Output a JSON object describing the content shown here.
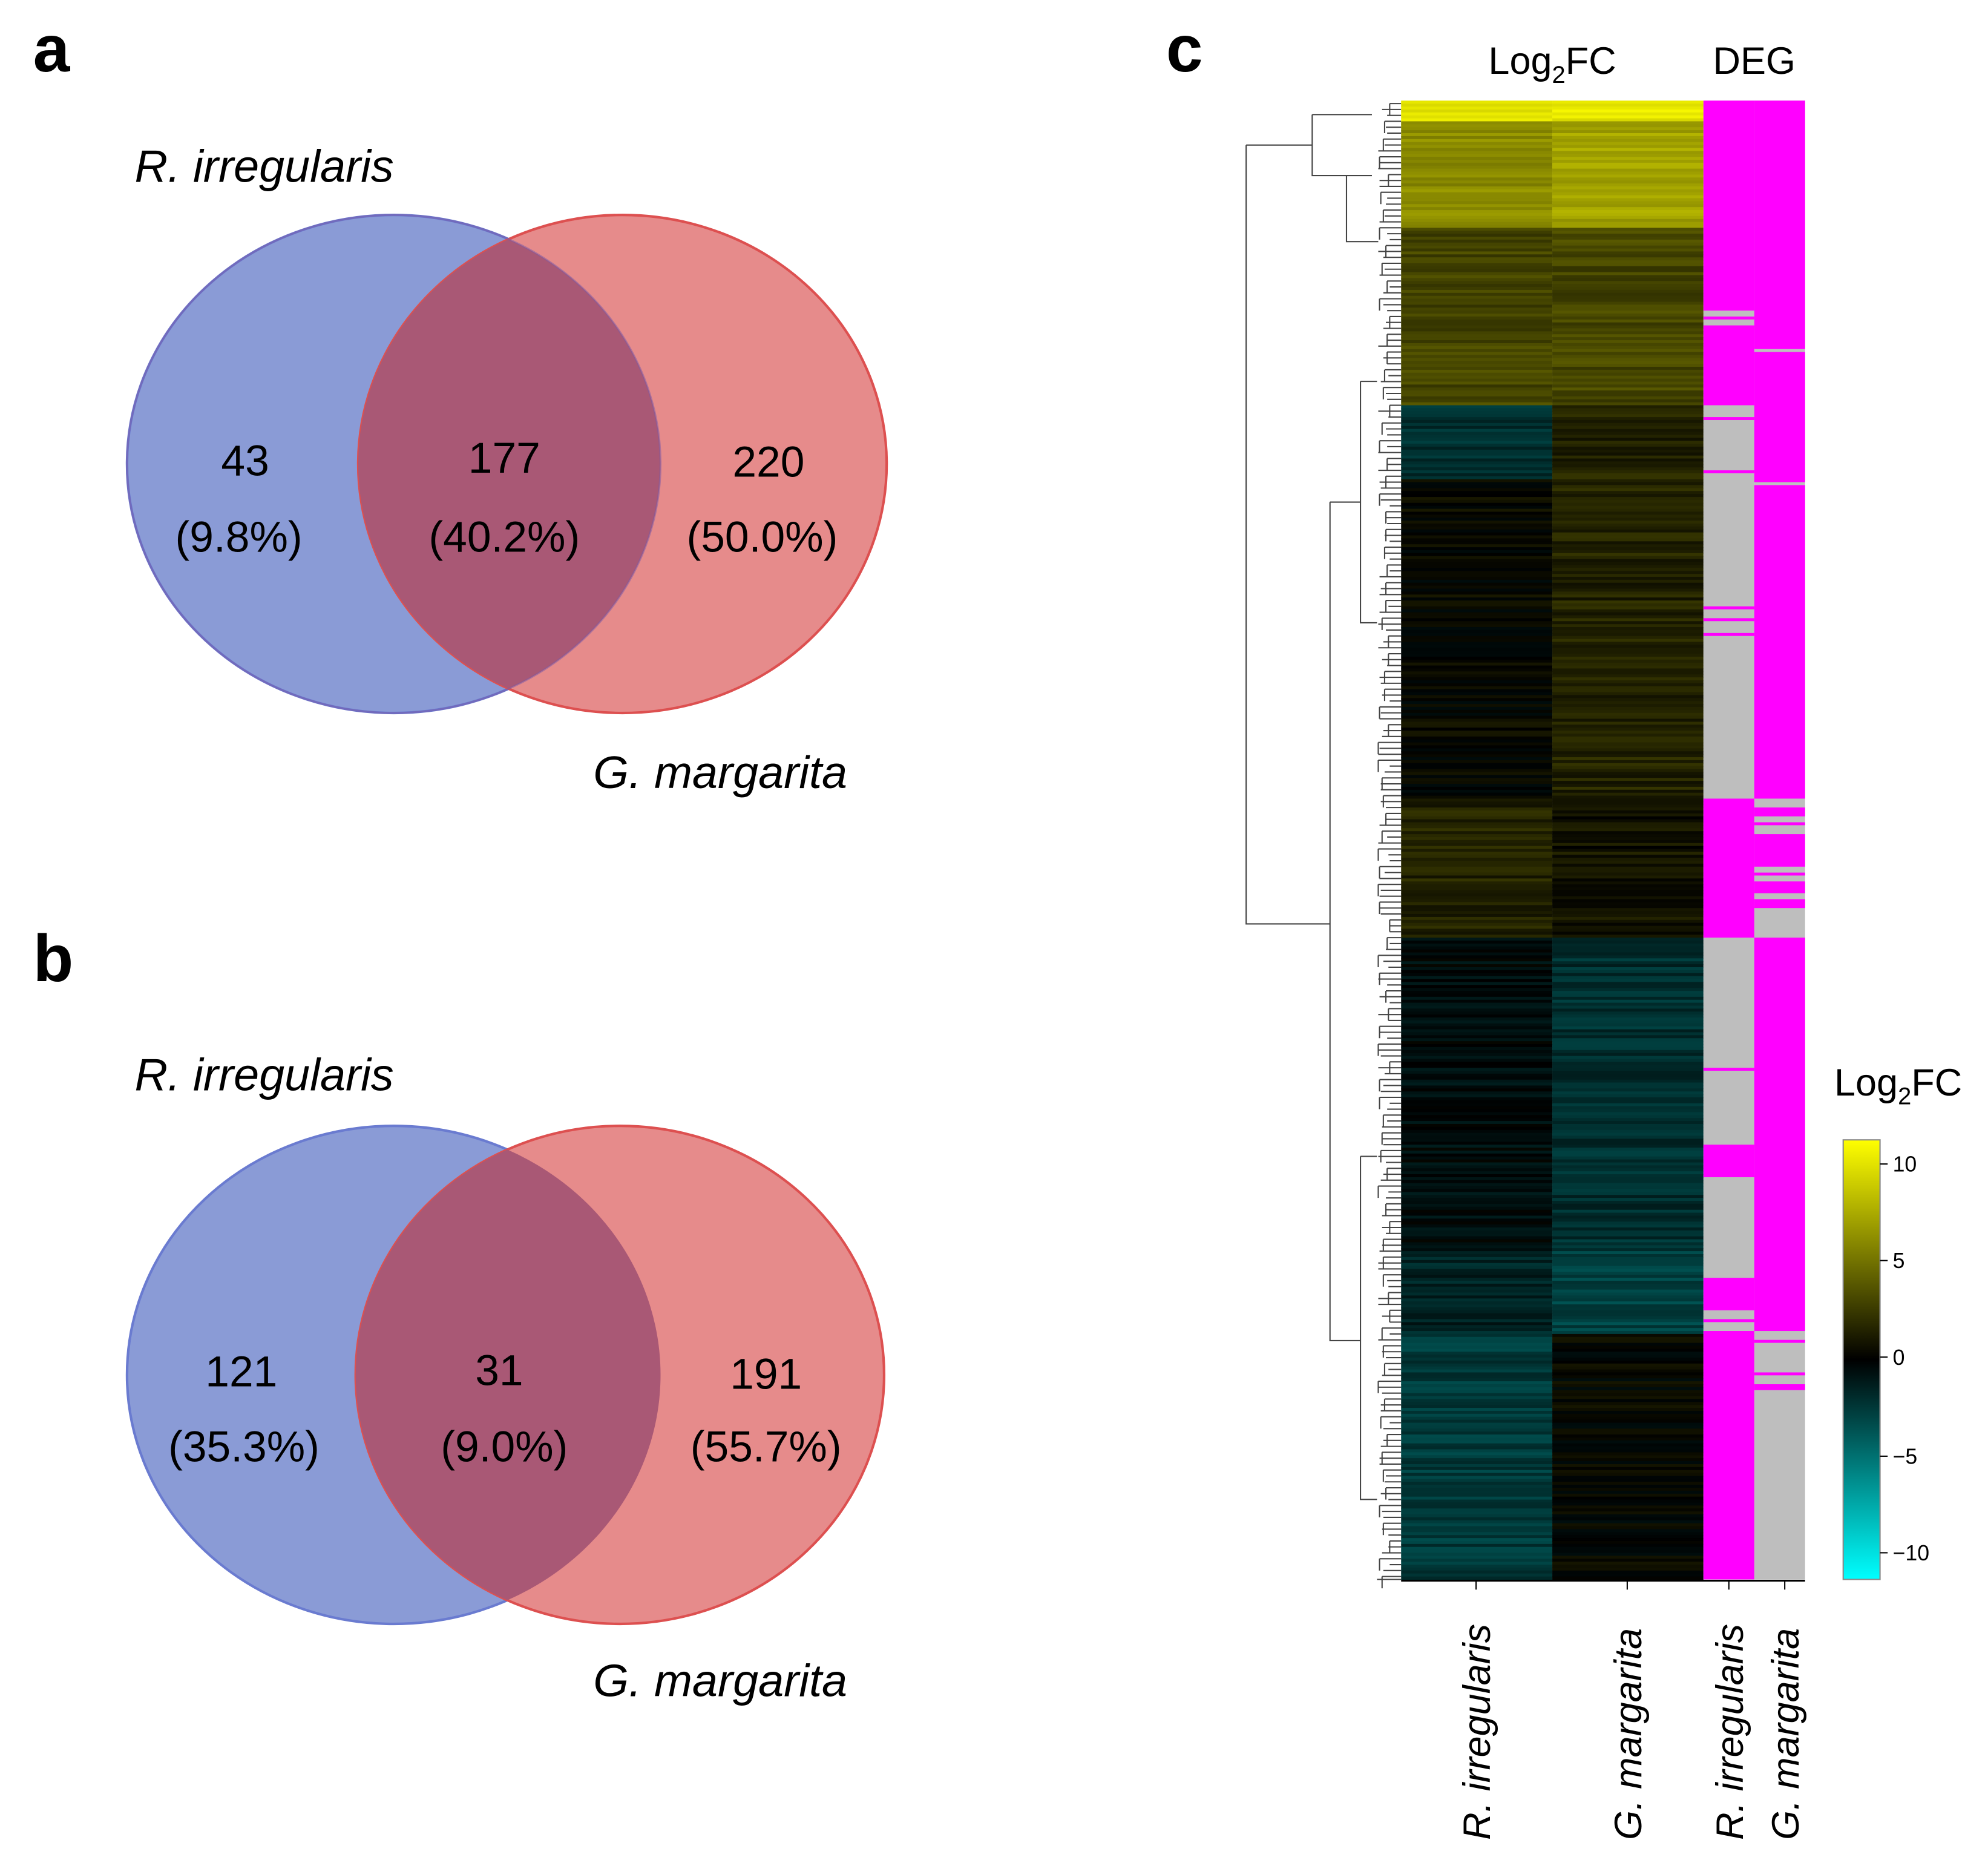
{
  "panels": {
    "a": "a",
    "b": "b",
    "c": "c"
  },
  "colors": {
    "set1": "#8a9bd6",
    "set1_stroke": "#6a7bd0",
    "set2": "#e68b8b",
    "set2_stroke": "#dd5050",
    "overlap": "#a95875",
    "deg_yes": "#ff00ff",
    "deg_no": "#bebebe",
    "high": "#ffff00",
    "mid": "#000000",
    "low": "#00ffff"
  },
  "chart_data": [
    {
      "type": "venn",
      "panel": "a",
      "sets": [
        "R. irregularis",
        "G. margarita"
      ],
      "regions": [
        {
          "name": "R. irregularis only",
          "count": "43",
          "percent": "(9.8%)"
        },
        {
          "name": "shared",
          "count": "177",
          "percent": "(40.2%)"
        },
        {
          "name": "G. margarita only",
          "count": "220",
          "percent": "(50.0%)"
        }
      ]
    },
    {
      "type": "venn",
      "panel": "b",
      "sets": [
        "R. irregularis",
        "G. margarita"
      ],
      "regions": [
        {
          "name": "R. irregularis only",
          "count": "121",
          "percent": "(35.3%)"
        },
        {
          "name": "shared",
          "count": "31",
          "percent": "(9.0%)"
        },
        {
          "name": "G. margarita only",
          "count": "191",
          "percent": "(55.7%)"
        }
      ]
    },
    {
      "type": "heatmap",
      "panel": "c",
      "headers": {
        "log2fc": "Log2FC",
        "deg": "DEG"
      },
      "columns": [
        "R. irregularis",
        "G. margarita",
        "R. irregularis",
        "G. margarita"
      ],
      "n_genes": 500,
      "log2fc_blocks": [
        {
          "rows": [
            0,
            7
          ],
          "ri": 10,
          "gm": 10
        },
        {
          "rows": [
            7,
            43
          ],
          "ri": 6,
          "gm": 7
        },
        {
          "rows": [
            43,
            103
          ],
          "ri": 3,
          "gm": 3
        },
        {
          "rows": [
            103,
            128
          ],
          "ri": -2,
          "gm": 1.5
        },
        {
          "rows": [
            128,
            236
          ],
          "ri": 0.3,
          "gm": 1.5
        },
        {
          "rows": [
            236,
            283
          ],
          "ri": 1.5,
          "gm": 0.8
        },
        {
          "rows": [
            283,
            389
          ],
          "ri": -0.5,
          "gm": -2
        },
        {
          "rows": [
            389,
            417
          ],
          "ri": -1.5,
          "gm": -2.8
        },
        {
          "rows": [
            417,
            500
          ],
          "ri": -2.5,
          "gm": 0.2
        }
      ],
      "deg_ri_yes": [
        [
          0,
          71
        ],
        [
          73,
          74
        ],
        [
          76,
          103
        ],
        [
          107,
          108
        ],
        [
          125,
          126
        ],
        [
          171,
          172
        ],
        [
          175,
          176
        ],
        [
          180,
          181
        ],
        [
          236,
          283
        ],
        [
          327,
          328
        ],
        [
          353,
          364
        ],
        [
          398,
          409
        ],
        [
          412,
          413
        ],
        [
          416,
          500
        ]
      ],
      "deg_gm_yes": [
        [
          0,
          84
        ],
        [
          85,
          129
        ],
        [
          130,
          236
        ],
        [
          239,
          242
        ],
        [
          244,
          245
        ],
        [
          248,
          259
        ],
        [
          261,
          262
        ],
        [
          264,
          268
        ],
        [
          270,
          273
        ],
        [
          283,
          416
        ],
        [
          419,
          420
        ],
        [
          430,
          431
        ],
        [
          434,
          436
        ]
      ],
      "legend": {
        "title": "Log2FC",
        "ticks": [
          "10",
          "5",
          "0",
          "−5",
          "−10"
        ],
        "range": [
          -11,
          11
        ]
      }
    }
  ]
}
